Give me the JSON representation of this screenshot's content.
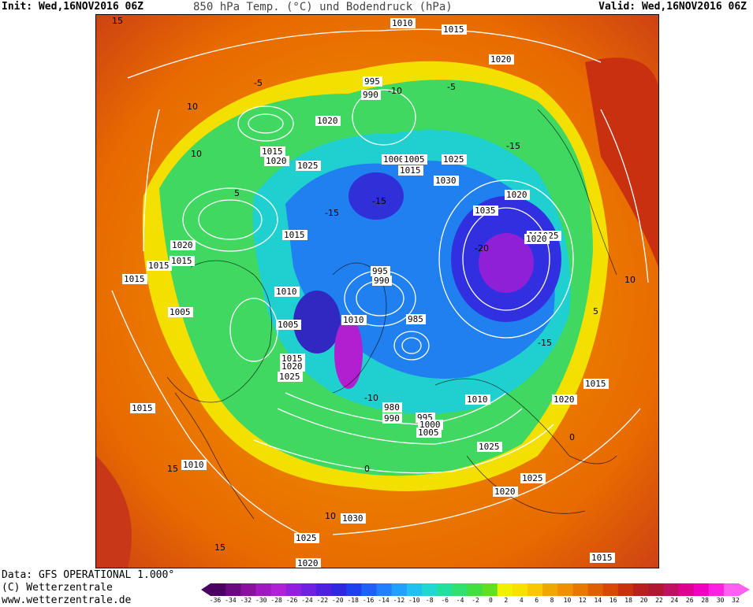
{
  "header": {
    "init": "Init: Wed,16NOV2016 06Z",
    "title": "850 hPa Temp. (°C) und Bodendruck (hPa)",
    "valid": "Valid: Wed,16NOV2016 06Z"
  },
  "footer": {
    "data_line": "Data: GFS OPERATIONAL 1.000°",
    "copyright": "(C) Wetterzentrale",
    "url": "www.wetterzentrale.de"
  },
  "legend": {
    "ticks": [
      "-36",
      "-34",
      "-32",
      "-30",
      "-28",
      "-26",
      "-24",
      "-22",
      "-20",
      "-18",
      "-16",
      "-14",
      "-12",
      "-10",
      "-8",
      "-6",
      "-4",
      "-2",
      "0",
      "2",
      "4",
      "6",
      "8",
      "10",
      "12",
      "14",
      "16",
      "18",
      "20",
      "22",
      "24",
      "26",
      "28",
      "30",
      "32"
    ],
    "colors": [
      "#4a0060",
      "#6a0a80",
      "#8a10a0",
      "#a018c0",
      "#b020d8",
      "#9020e0",
      "#7020e0",
      "#5020e0",
      "#3028e0",
      "#2040f0",
      "#2060f8",
      "#2080ff",
      "#20a0ff",
      "#20c0f0",
      "#20d8d0",
      "#20e0a0",
      "#30e070",
      "#40e040",
      "#60e020",
      "#f0f000",
      "#f8e000",
      "#f8c800",
      "#f0a800",
      "#f09000",
      "#e87800",
      "#e06000",
      "#d84800",
      "#c83010",
      "#b82020",
      "#b01830",
      "#c01060",
      "#e00090",
      "#f000c0",
      "#ff20e0",
      "#ff60f0"
    ]
  },
  "map": {
    "pressure_labels": [
      {
        "text": "1010"
      },
      {
        "text": "1015"
      },
      {
        "text": "1020"
      },
      {
        "text": "995"
      },
      {
        "text": "990"
      },
      {
        "text": "1020"
      },
      {
        "text": "1015"
      },
      {
        "text": "1020"
      },
      {
        "text": "1025"
      },
      {
        "text": "1000"
      },
      {
        "text": "1005"
      },
      {
        "text": "1015"
      },
      {
        "text": "1025"
      },
      {
        "text": "1030"
      },
      {
        "text": "1020"
      },
      {
        "text": "1035"
      },
      {
        "text": "1035"
      },
      {
        "text": "1025"
      },
      {
        "text": "1020"
      },
      {
        "text": "1015"
      },
      {
        "text": "1020"
      },
      {
        "text": "1015"
      },
      {
        "text": "1015"
      },
      {
        "text": "995"
      },
      {
        "text": "990"
      },
      {
        "text": "1010"
      },
      {
        "text": "1005"
      },
      {
        "text": "1010"
      },
      {
        "text": "985"
      },
      {
        "text": "1015"
      },
      {
        "text": "1020"
      },
      {
        "text": "1025"
      },
      {
        "text": "1005"
      },
      {
        "text": "1015"
      },
      {
        "text": "980"
      },
      {
        "text": "990"
      },
      {
        "text": "995"
      },
      {
        "text": "1000"
      },
      {
        "text": "1005"
      },
      {
        "text": "1010"
      },
      {
        "text": "1020"
      },
      {
        "text": "1015"
      },
      {
        "text": "1025"
      },
      {
        "text": "1025"
      },
      {
        "text": "1020"
      },
      {
        "text": "1010"
      },
      {
        "text": "1030"
      },
      {
        "text": "1025"
      },
      {
        "text": "1020"
      },
      {
        "text": "1015"
      },
      {
        "text": "1015"
      },
      {
        "text": "1015"
      },
      {
        "text": "1020"
      }
    ],
    "temp_labels": [
      "10",
      "15",
      "10",
      "-5",
      "-10",
      "-15",
      "-20",
      "0",
      "5",
      "-5",
      "-15",
      "-10",
      "-15",
      "15",
      "10",
      "0",
      "5",
      "15",
      "10",
      "-15"
    ]
  }
}
